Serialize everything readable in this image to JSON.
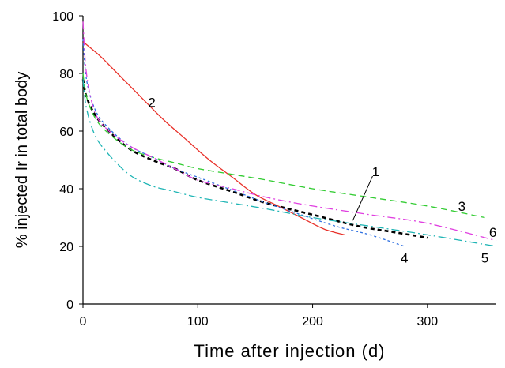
{
  "chart_data": {
    "type": "line",
    "title": "",
    "xlabel": "Time after injection (d)",
    "ylabel": "% injected Ir in total body",
    "xlim": [
      0,
      360
    ],
    "ylim": [
      0,
      100
    ],
    "xticks": [
      0,
      100,
      200,
      300
    ],
    "yticks": [
      0,
      20,
      40,
      60,
      80,
      100
    ],
    "grid": false,
    "legend": "none",
    "series": [
      {
        "label": "1",
        "color": "#000000",
        "style": "dashed-thick",
        "x": [
          0,
          3,
          10,
          20,
          40,
          60,
          80,
          100,
          130,
          160,
          200,
          240,
          270,
          300
        ],
        "y": [
          78,
          72,
          66,
          61,
          54,
          50,
          47,
          43,
          39,
          35,
          31,
          27,
          25,
          23
        ]
      },
      {
        "label": "2",
        "color": "#e8312a",
        "style": "solid",
        "x": [
          0,
          15,
          30,
          50,
          70,
          90,
          110,
          130,
          150,
          170,
          190,
          210,
          228
        ],
        "y": [
          91,
          86,
          80,
          72,
          64,
          57,
          50,
          44,
          38,
          34,
          30,
          26,
          24
        ]
      },
      {
        "label": "3",
        "color": "#33cc33",
        "style": "dashed",
        "x": [
          0,
          3,
          10,
          20,
          40,
          60,
          80,
          100,
          130,
          160,
          200,
          250,
          300,
          350
        ],
        "y": [
          80,
          72,
          65,
          60,
          54,
          51,
          49,
          47,
          45,
          43,
          40,
          37,
          34,
          30
        ]
      },
      {
        "label": "4",
        "color": "#2d6fe0",
        "style": "dotted",
        "x": [
          0,
          3,
          10,
          20,
          40,
          60,
          80,
          100,
          120,
          140,
          160,
          190,
          220,
          250,
          280
        ],
        "y": [
          92,
          78,
          68,
          62,
          55,
          51,
          47,
          44,
          41,
          38,
          35,
          31,
          27,
          24,
          20
        ]
      },
      {
        "label": "5",
        "color": "#1fb5b5",
        "style": "dash-dot",
        "x": [
          0,
          3,
          10,
          20,
          40,
          60,
          80,
          100,
          130,
          160,
          200,
          250,
          300,
          360
        ],
        "y": [
          78,
          68,
          59,
          53,
          45,
          41,
          39,
          37,
          35,
          33,
          30,
          27,
          24,
          20
        ]
      },
      {
        "label": "6",
        "color": "#e040e0",
        "style": "dash-dot",
        "x": [
          0,
          3,
          10,
          20,
          40,
          60,
          80,
          100,
          130,
          160,
          200,
          250,
          300,
          360
        ],
        "y": [
          98,
          80,
          67,
          61,
          55,
          51,
          47,
          43,
          40,
          37,
          34,
          31,
          28,
          22
        ]
      }
    ],
    "annotations": [
      {
        "text": "1",
        "x": 255,
        "y": 46,
        "pointer_to": [
          235,
          29
        ]
      },
      {
        "text": "2",
        "x": 60,
        "y": 70
      },
      {
        "text": "3",
        "x": 330,
        "y": 34
      },
      {
        "text": "4",
        "x": 280,
        "y": 16
      },
      {
        "text": "5",
        "x": 350,
        "y": 16
      },
      {
        "text": "6",
        "x": 357,
        "y": 25
      }
    ]
  }
}
